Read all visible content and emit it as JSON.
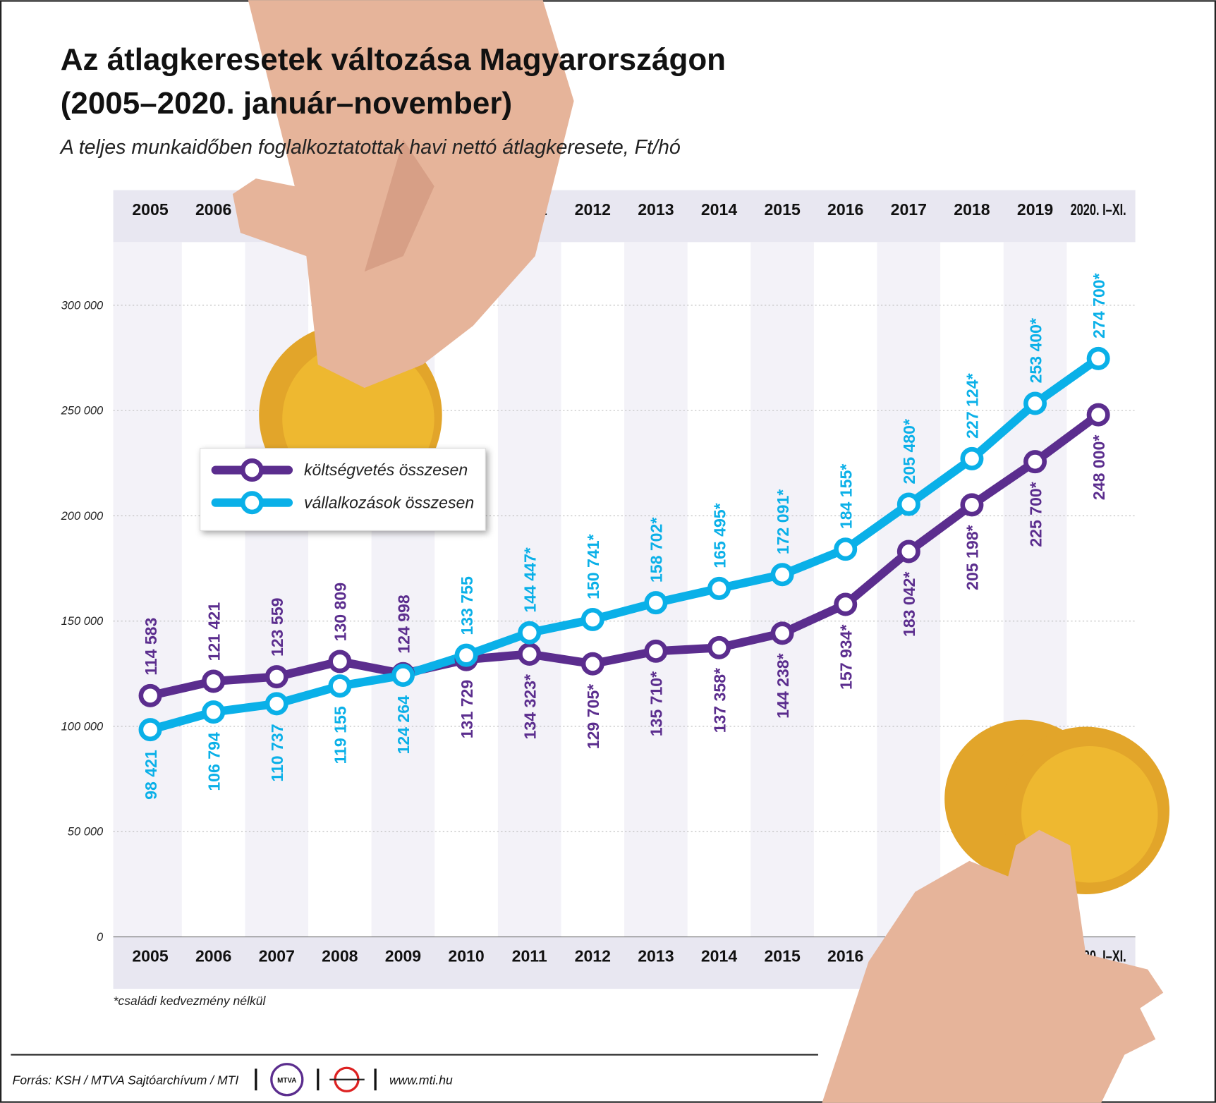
{
  "title": [
    "Az átlagkeresetek változása Magyarországon",
    "(2005–2020. január–november)"
  ],
  "subtitle": "A teljes munkaidőben foglalkoztatottak havi nettó átlagkeresete, Ft/hó",
  "footnote": "*családi kedvezmény nélkül",
  "source": "Forrás: KSH / MTVA Sajtóarchívum / MTI",
  "logo": "MTVA",
  "website": "www.mti.hu",
  "chart_data": {
    "type": "line",
    "categories": [
      "2005",
      "2006",
      "2007",
      "2008",
      "2009",
      "2010",
      "2011",
      "2012",
      "2013",
      "2014",
      "2015",
      "2016",
      "2017",
      "2018",
      "2019",
      "2020. I–XI."
    ],
    "series": [
      {
        "name": "költségvetés összesen",
        "color": "#5b2d8e",
        "values": [
          114583,
          121421,
          123559,
          130809,
          124998,
          131729,
          134323,
          129705,
          135710,
          137358,
          144238,
          157934,
          183042,
          205198,
          225700,
          248000
        ],
        "value_labels": [
          "114 583",
          "121 421",
          "123 559",
          "130 809",
          "124 998",
          "131 729",
          "134 323*",
          "129 705*",
          "135 710*",
          "137 358*",
          "144 238*",
          "157 934*",
          "183 042*",
          "205 198*",
          "225 700*",
          "248 000*"
        ]
      },
      {
        "name": "vállalkozások összesen",
        "color": "#0ab0e8",
        "values": [
          98421,
          106794,
          110737,
          119155,
          124264,
          133755,
          144447,
          150741,
          158702,
          165495,
          172091,
          184155,
          205480,
          227124,
          253400,
          274700
        ],
        "value_labels": [
          "98 421",
          "106 794",
          "110 737",
          "119 155",
          "124 264",
          "133 755",
          "144 447*",
          "150 741*",
          "158 702*",
          "165 495*",
          "172 091*",
          "184 155*",
          "205 480*",
          "227 124*",
          "253 400*",
          "274 700*"
        ]
      }
    ],
    "ylim": [
      0,
      330000
    ],
    "yticks": [
      0,
      {
        "value": 50000,
        "label": "50 000"
      },
      {
        "value": 100000,
        "label": "100 000"
      },
      {
        "value": 150000,
        "label": "150 000"
      },
      {
        "value": 200000,
        "label": "200 000"
      },
      {
        "value": 250000,
        "label": "250 000"
      },
      {
        "value": 300000,
        "label": "300 000"
      }
    ],
    "grid": true
  }
}
